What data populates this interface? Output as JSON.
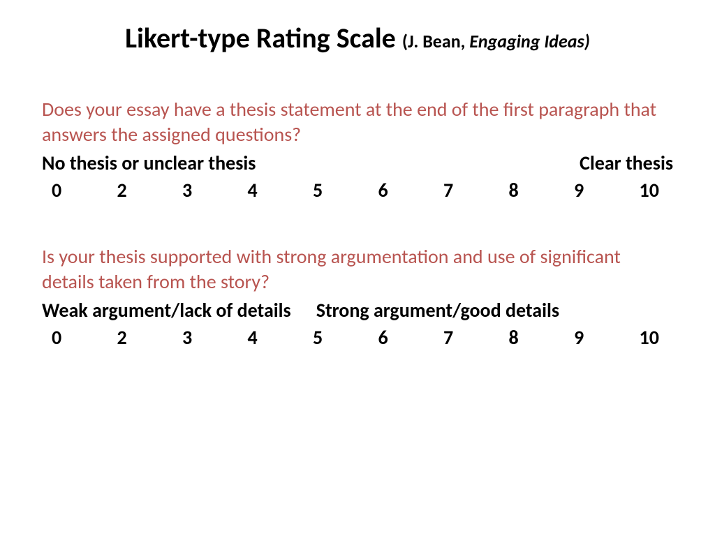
{
  "title": {
    "main": "Likert-type Rating Scale ",
    "sub_prefix": "(J. Bean, ",
    "sub_italic": "Engaging Ideas)"
  },
  "colors": {
    "question": "#b85450",
    "text": "#000000",
    "background": "#ffffff"
  },
  "fonts": {
    "title_main_size": 40,
    "title_sub_size": 26,
    "body_size": 28
  },
  "sections": [
    {
      "question": "Does your essay have a thesis statement at the end of the first paragraph that answers the assigned questions?",
      "anchor_left": "No thesis or unclear thesis",
      "anchor_right": "Clear thesis",
      "anchor_layout": "spread",
      "scale": [
        "0",
        "2",
        "3",
        "4",
        "5",
        "6",
        "7",
        "8",
        "9",
        "10"
      ]
    },
    {
      "question": "Is your thesis supported with strong argumentation and use of significant details taken from the story?",
      "anchor_left": "Weak argument/lack of details",
      "anchor_right": "Strong argument/good  details",
      "anchor_layout": "close",
      "scale": [
        "0",
        "2",
        "3",
        "4",
        "5",
        "6",
        "7",
        "8",
        "9",
        "10"
      ]
    }
  ]
}
